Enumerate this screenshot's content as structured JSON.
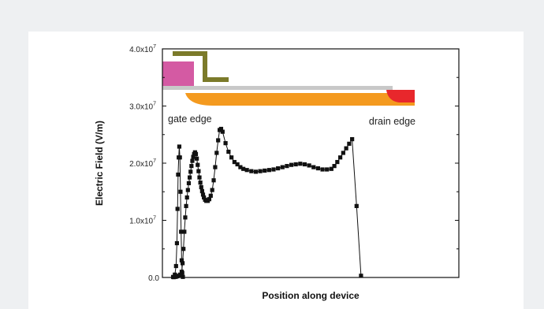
{
  "chart_data": {
    "type": "line",
    "title": "",
    "xlabel": "Position along device",
    "ylabel": "Electric Field (V/m)",
    "ylim": [
      0,
      40000000
    ],
    "xlim": [
      0,
      100
    ],
    "yticks": [
      {
        "value": 0,
        "label": "0.0"
      },
      {
        "value": 10000000,
        "label": "1.0x10",
        "exp": "7"
      },
      {
        "value": 20000000,
        "label": "2.0x10",
        "exp": "7"
      },
      {
        "value": 30000000,
        "label": "3.0x10",
        "exp": "7"
      },
      {
        "value": 40000000,
        "label": "4.0x10",
        "exp": "7"
      }
    ],
    "grid": false,
    "annotations": [
      {
        "text": "gate edge"
      },
      {
        "text": "drain edge"
      }
    ],
    "series": [
      {
        "points": [
          [
            3.6,
            100000.0
          ],
          [
            4.2,
            500000.0
          ],
          [
            4.6,
            2000000.0
          ],
          [
            4.9,
            6000000.0
          ],
          [
            5.1,
            12000000.0
          ],
          [
            5.3,
            18000000.0
          ],
          [
            5.5,
            21000000.0
          ],
          [
            5.7,
            22900000.0
          ],
          [
            5.9,
            21000000.0
          ],
          [
            6.1,
            15000000.0
          ],
          [
            6.3,
            8000000.0
          ],
          [
            6.5,
            3000000.0
          ],
          [
            6.7,
            800000.0
          ],
          [
            6.9,
            100000.0
          ],
          [
            3.8,
            50000.0
          ],
          [
            4.5,
            100000.0
          ],
          [
            5.0,
            200000.0
          ],
          [
            5.5,
            300000.0
          ],
          [
            6.0,
            500000.0
          ],
          [
            6.5,
            1000000.0
          ],
          [
            6.8,
            2500000.0
          ],
          [
            7.1,
            5000000.0
          ],
          [
            7.4,
            8000000.0
          ],
          [
            7.7,
            10500000.0
          ],
          [
            8.0,
            12500000.0
          ],
          [
            8.3,
            14000000.0
          ],
          [
            8.6,
            15300000.0
          ],
          [
            8.9,
            16500000.0
          ],
          [
            9.2,
            17500000.0
          ],
          [
            9.5,
            18500000.0
          ],
          [
            9.8,
            19500000.0
          ],
          [
            10.1,
            20400000.0
          ],
          [
            10.4,
            21100000.0
          ],
          [
            10.7,
            21600000.0
          ],
          [
            11.0,
            21900000.0
          ],
          [
            11.3,
            21600000.0
          ],
          [
            11.6,
            20800000.0
          ],
          [
            11.9,
            19700000.0
          ],
          [
            12.2,
            18600000.0
          ],
          [
            12.5,
            17500000.0
          ],
          [
            12.8,
            16600000.0
          ],
          [
            13.1,
            15800000.0
          ],
          [
            13.4,
            15100000.0
          ],
          [
            13.7,
            14500000.0
          ],
          [
            14.0,
            14000000.0
          ],
          [
            14.4,
            13600000.0
          ],
          [
            14.8,
            13400000.0
          ],
          [
            15.3,
            13400000.0
          ],
          [
            15.8,
            13700000.0
          ],
          [
            16.3,
            14300000.0
          ],
          [
            16.8,
            15300000.0
          ],
          [
            17.3,
            17000000.0
          ],
          [
            17.8,
            19300000.0
          ],
          [
            18.3,
            21800000.0
          ],
          [
            18.8,
            24000000.0
          ],
          [
            19.3,
            25800000.0
          ],
          [
            19.8,
            26000000.0
          ],
          [
            20.3,
            25500000.0
          ],
          [
            21.3,
            23500000.0
          ],
          [
            22.3,
            22000000.0
          ],
          [
            23.3,
            21000000.0
          ],
          [
            24.3,
            20200000.0
          ],
          [
            25.3,
            19800000.0
          ],
          [
            26.3,
            19300000.0
          ],
          [
            27.3,
            19000000.0
          ],
          [
            28.5,
            18800000.0
          ],
          [
            30.0,
            18600000.0
          ],
          [
            31.5,
            18500000.0
          ],
          [
            33.0,
            18600000.0
          ],
          [
            34.5,
            18700000.0
          ],
          [
            36.0,
            18800000.0
          ],
          [
            37.5,
            18900000.0
          ],
          [
            39.0,
            19100000.0
          ],
          [
            40.5,
            19300000.0
          ],
          [
            42.0,
            19500000.0
          ],
          [
            43.5,
            19700000.0
          ],
          [
            45.0,
            19800000.0
          ],
          [
            46.5,
            19900000.0
          ],
          [
            48.0,
            19800000.0
          ],
          [
            49.5,
            19600000.0
          ],
          [
            51.0,
            19300000.0
          ],
          [
            52.5,
            19100000.0
          ],
          [
            54.0,
            18900000.0
          ],
          [
            55.5,
            18900000.0
          ],
          [
            57.0,
            19000000.0
          ],
          [
            58.0,
            19500000.0
          ],
          [
            59.0,
            20200000.0
          ],
          [
            60.0,
            21000000.0
          ],
          [
            61.0,
            21800000.0
          ],
          [
            62.0,
            22600000.0
          ],
          [
            63.0,
            23400000.0
          ],
          [
            64.0,
            24200000.0
          ],
          [
            65.5,
            12500000.0
          ],
          [
            67.0,
            300000.0
          ]
        ]
      }
    ]
  }
}
